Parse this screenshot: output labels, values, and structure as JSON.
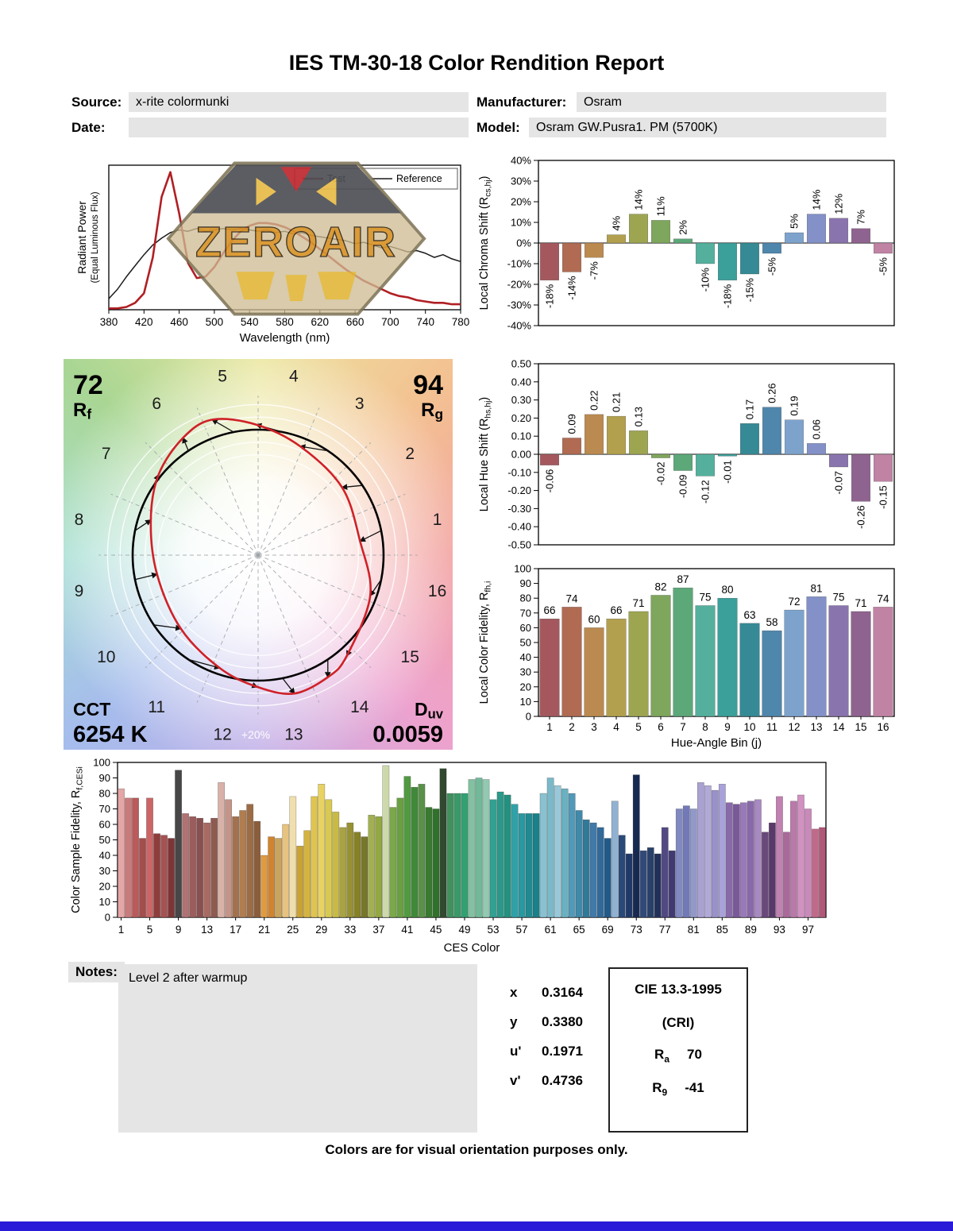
{
  "title": "IES TM-30-18 Color Rendition Report",
  "header": {
    "source_label": "Source:",
    "source_value": "x-rite colormunki",
    "manufacturer_label": "Manufacturer:",
    "manufacturer_value": "Osram",
    "date_label": "Date:",
    "date_value": "",
    "model_label": "Model:",
    "model_value": "Osram GW.Pusra1. PM (5700K)"
  },
  "watermark_text": "ZEROAIR",
  "bin_colors": [
    "#a4585e",
    "#b06b52",
    "#bb8a50",
    "#b3a04e",
    "#9da551",
    "#7ea65c",
    "#5ca878",
    "#54b09c",
    "#3b9f9a",
    "#368a96",
    "#4f86ac",
    "#7da3cd",
    "#8391c8",
    "#8a74ad",
    "#8f6390",
    "#c083a4"
  ],
  "cvg": {
    "rf_value": "72",
    "rf_label": "R_{f}",
    "rg_value": "94",
    "rg_label": "R_{g}",
    "cct_label": "CCT",
    "cct_value": "6254 K",
    "duv_label": "D_{uv}",
    "duv_value": "0.0059",
    "ring_label": "+20%",
    "bins": [
      "1",
      "2",
      "3",
      "4",
      "5",
      "6",
      "7",
      "8",
      "9",
      "10",
      "11",
      "12",
      "13",
      "14",
      "15",
      "16"
    ]
  },
  "chart_data": [
    {
      "id": "spd",
      "type": "line",
      "xlabel": "Wavelength (nm)",
      "ylabel": "Radiant Power",
      "ylabel2": "(Equal Luminous Flux)",
      "xlim": [
        380,
        780
      ],
      "ylim": [
        0,
        1.05
      ],
      "xticks": [
        380,
        420,
        460,
        500,
        540,
        580,
        620,
        660,
        700,
        740,
        780
      ],
      "x": [
        380,
        390,
        400,
        410,
        420,
        430,
        440,
        450,
        460,
        470,
        480,
        490,
        500,
        510,
        520,
        530,
        540,
        550,
        560,
        570,
        580,
        590,
        600,
        610,
        620,
        630,
        640,
        650,
        660,
        670,
        680,
        690,
        700,
        710,
        720,
        730,
        740,
        750,
        760,
        770,
        780
      ],
      "series": [
        {
          "name": "Test",
          "color": "#b01f24",
          "values": [
            0.01,
            0.01,
            0.02,
            0.05,
            0.12,
            0.38,
            0.82,
            1.0,
            0.7,
            0.34,
            0.23,
            0.24,
            0.31,
            0.41,
            0.5,
            0.57,
            0.61,
            0.63,
            0.63,
            0.62,
            0.6,
            0.57,
            0.53,
            0.49,
            0.44,
            0.39,
            0.34,
            0.29,
            0.25,
            0.21,
            0.18,
            0.15,
            0.12,
            0.1,
            0.09,
            0.07,
            0.06,
            0.05,
            0.05,
            0.04,
            0.04
          ]
        },
        {
          "name": "Reference",
          "color": "#1a1a1a",
          "values": [
            0.08,
            0.15,
            0.24,
            0.32,
            0.4,
            0.47,
            0.52,
            0.56,
            0.58,
            0.57,
            0.59,
            0.57,
            0.58,
            0.59,
            0.58,
            0.59,
            0.58,
            0.57,
            0.58,
            0.56,
            0.57,
            0.55,
            0.56,
            0.54,
            0.53,
            0.52,
            0.51,
            0.5,
            0.48,
            0.49,
            0.47,
            0.45,
            0.46,
            0.44,
            0.42,
            0.43,
            0.41,
            0.38,
            0.4,
            0.37,
            0.35
          ]
        }
      ]
    },
    {
      "id": "chroma",
      "type": "bar",
      "ylabel": "Local Chroma Shift (R_{cs,hj})",
      "ylim": [
        -40,
        40
      ],
      "ystep": 10,
      "yfmt": "percent",
      "categories": [
        "1",
        "2",
        "3",
        "4",
        "5",
        "6",
        "7",
        "8",
        "9",
        "10",
        "11",
        "12",
        "13",
        "14",
        "15",
        "16"
      ],
      "values": [
        -18,
        -14,
        -7,
        4,
        14,
        11,
        2,
        -10,
        -18,
        -15,
        -5,
        5,
        14,
        12,
        7,
        -5
      ],
      "bar_labels": [
        "-18%",
        "-14%",
        "-7%",
        "4%",
        "14%",
        "11%",
        "2%",
        "-10%",
        "-18%",
        "-15%",
        "-5%",
        "5%",
        "14%",
        "12%",
        "7%",
        "-5%"
      ]
    },
    {
      "id": "hue",
      "type": "bar",
      "ylabel": "Local Hue Shift (R_{hs,hj})",
      "ylim": [
        -0.5,
        0.5
      ],
      "ystep": 0.1,
      "yfmt": "dec2",
      "categories": [
        "1",
        "2",
        "3",
        "4",
        "5",
        "6",
        "7",
        "8",
        "9",
        "10",
        "11",
        "12",
        "13",
        "14",
        "15",
        "16"
      ],
      "values": [
        -0.06,
        0.09,
        0.22,
        0.21,
        0.13,
        -0.02,
        -0.09,
        -0.12,
        -0.01,
        0.17,
        0.26,
        0.19,
        0.06,
        -0.07,
        -0.26,
        -0.15
      ],
      "bar_labels": [
        "-0.06",
        "0.09",
        "0.22",
        "0.21",
        "0.13",
        "-0.02",
        "-0.09",
        "-0.12",
        "-0.01",
        "0.17",
        "0.26",
        "0.19",
        "0.06",
        "-0.07",
        "-0.26",
        "-0.15"
      ]
    },
    {
      "id": "fid",
      "type": "bar",
      "ylabel": "Local Color Fidelity, R_{fh,i}",
      "xlabel": "Hue-Angle Bin (j)",
      "ylim": [
        0,
        100
      ],
      "ystep": 10,
      "yfmt": "int",
      "categories": [
        "1",
        "2",
        "3",
        "4",
        "5",
        "6",
        "7",
        "8",
        "9",
        "10",
        "11",
        "12",
        "13",
        "14",
        "15",
        "16"
      ],
      "values": [
        66,
        74,
        60,
        66,
        71,
        82,
        87,
        75,
        80,
        63,
        58,
        72,
        81,
        75,
        71,
        74
      ],
      "bar_labels": [
        "66",
        "74",
        "60",
        "66",
        "71",
        "82",
        "87",
        "75",
        "80",
        "63",
        "58",
        "72",
        "81",
        "75",
        "71",
        "74"
      ]
    },
    {
      "id": "ces",
      "type": "bar",
      "ylabel": "Color Sample Fidelity, R_{f,CESi}",
      "xlabel": "CES Color",
      "ylim": [
        0,
        100
      ],
      "ystep": 10,
      "yfmt": "int",
      "xticks": [
        1,
        5,
        9,
        13,
        17,
        21,
        25,
        29,
        33,
        37,
        41,
        45,
        49,
        53,
        57,
        61,
        65,
        69,
        73,
        77,
        81,
        85,
        89,
        93,
        97
      ],
      "values": [
        83,
        77,
        77,
        51,
        77,
        54,
        53,
        51,
        95,
        67,
        65,
        64,
        61,
        64,
        87,
        76,
        65,
        69,
        73,
        62,
        40,
        52,
        51,
        60,
        78,
        46,
        56,
        78,
        86,
        76,
        68,
        58,
        61,
        55,
        52,
        66,
        65,
        98,
        71,
        77,
        91,
        84,
        86,
        71,
        70,
        96,
        80,
        80,
        80,
        89,
        90,
        89,
        76,
        81,
        79,
        73,
        67,
        67,
        67,
        80,
        90,
        85,
        83,
        80,
        69,
        63,
        61,
        58,
        51,
        75,
        53,
        41,
        92,
        43,
        45,
        41,
        58,
        43,
        70,
        72,
        70,
        87,
        85,
        82,
        86,
        74,
        73,
        74,
        75,
        76,
        55,
        61,
        78,
        55,
        75,
        79,
        70,
        57,
        58
      ],
      "colors": [
        "#e4a6a6",
        "#c97b7b",
        "#ba5a5a",
        "#a34d4d",
        "#cc6666",
        "#8e3d3d",
        "#a65252",
        "#7d3535",
        "#474747",
        "#b07272",
        "#9c5c5c",
        "#8a4f4f",
        "#a86a62",
        "#8f5a50",
        "#d8b2a8",
        "#c49488",
        "#a4714f",
        "#b07d50",
        "#9c6c45",
        "#8a5d3c",
        "#e09a40",
        "#d08430",
        "#c9a45e",
        "#e6c37e",
        "#f0dfae",
        "#c9a232",
        "#d4b341",
        "#e0c452",
        "#e8d262",
        "#d8c952",
        "#c9ba43",
        "#a8a244",
        "#979134",
        "#868127",
        "#77772b",
        "#a2b052",
        "#93a843",
        "#cdd9ab",
        "#7aa84a",
        "#69a041",
        "#519a42",
        "#41893a",
        "#5a9149",
        "#397a31",
        "#30722a",
        "#31492f",
        "#41915f",
        "#3a9968",
        "#32a171",
        "#82c1a1",
        "#72b999",
        "#92c9b1",
        "#32a192",
        "#2a9989",
        "#23917f",
        "#31a1a8",
        "#2999a0",
        "#218a91",
        "#198189",
        "#8ac1d1",
        "#7ab9c9",
        "#99c9d9",
        "#6ab1c1",
        "#5199b9",
        "#4189a9",
        "#317999",
        "#4179a9",
        "#316999",
        "#215989",
        "#91b1d1",
        "#294979",
        "#213969",
        "#182951",
        "#314979",
        "#294069",
        "#213059",
        "#514981",
        "#413971",
        "#8189c1",
        "#7179b9",
        "#9199c9",
        "#a9a1d1",
        "#b1a9d9",
        "#9991c9",
        "#a9a1d9",
        "#8969a9",
        "#795999",
        "#9979b9",
        "#8969a9",
        "#a989c1",
        "#694979",
        "#593969",
        "#c181b1",
        "#a96999",
        "#b979a9",
        "#d191c1",
        "#c989b9",
        "#c16989",
        "#b15879"
      ]
    }
  ],
  "notes": {
    "label": "Notes:",
    "text": "Level 2 after warmup"
  },
  "chromaticity": {
    "rows": [
      {
        "label": "x",
        "value": "0.3164"
      },
      {
        "label": "y",
        "value": "0.3380"
      },
      {
        "label": "u'",
        "value": "0.1971"
      },
      {
        "label": "v'",
        "value": "0.4736"
      }
    ]
  },
  "cri": {
    "title": "CIE 13.3-1995",
    "subtitle": "(CRI)",
    "ra_label": "R",
    "ra_sub": "a",
    "ra_value": "70",
    "r9_label": "R",
    "r9_sub": "9",
    "r9_value": "-41"
  },
  "footer": "Colors are for visual orientation purposes only."
}
